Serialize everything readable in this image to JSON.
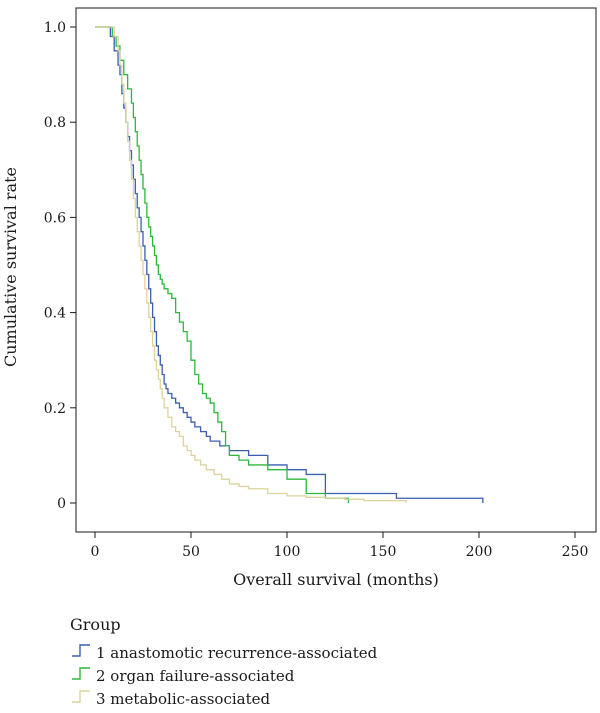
{
  "chart_data": {
    "type": "line",
    "step": true,
    "title": "",
    "xlabel": "Overall survival (months)",
    "ylabel": "Cumulative survival rate",
    "xlim": [
      0,
      250
    ],
    "ylim": [
      0,
      1.0
    ],
    "xticks": [
      0,
      50,
      100,
      150,
      200,
      250
    ],
    "xtick_labels": [
      "0",
      "50",
      "100",
      "150",
      "200",
      "250"
    ],
    "yticks": [
      0,
      0.2,
      0.4,
      0.6,
      0.8,
      1.0
    ],
    "ytick_labels": [
      "0",
      "0.2",
      "0.4",
      "0.6",
      "0.8",
      "1.0"
    ],
    "grid": false,
    "legend": {
      "title": "Group",
      "position": "bottom-left"
    },
    "series": [
      {
        "name": "1 anastomotic recurrence-associated",
        "color": "#3a5fb0",
        "x": [
          6,
          8,
          10,
          12,
          13,
          14,
          15,
          16,
          17,
          18,
          19,
          20,
          21,
          22,
          23,
          24,
          25,
          26,
          27,
          28,
          29,
          30,
          31,
          32,
          33,
          34,
          35,
          36,
          37,
          38,
          40,
          42,
          44,
          46,
          48,
          50,
          52,
          55,
          58,
          60,
          65,
          70,
          80,
          90,
          100,
          110,
          120,
          157,
          202
        ],
        "y": [
          1.0,
          0.98,
          0.95,
          0.92,
          0.9,
          0.86,
          0.83,
          0.8,
          0.77,
          0.74,
          0.71,
          0.68,
          0.65,
          0.62,
          0.6,
          0.57,
          0.54,
          0.51,
          0.48,
          0.45,
          0.42,
          0.39,
          0.36,
          0.33,
          0.31,
          0.29,
          0.27,
          0.25,
          0.24,
          0.23,
          0.22,
          0.21,
          0.2,
          0.19,
          0.18,
          0.17,
          0.16,
          0.15,
          0.14,
          0.13,
          0.12,
          0.11,
          0.1,
          0.08,
          0.07,
          0.06,
          0.02,
          0.01,
          0.0
        ]
      },
      {
        "name": "2 organ failure-associated",
        "color": "#2db83a",
        "x": [
          7,
          9,
          11,
          13,
          15,
          17,
          19,
          20,
          21,
          22,
          23,
          24,
          25,
          26,
          27,
          28,
          29,
          30,
          31,
          32,
          33,
          34,
          35,
          36,
          38,
          40,
          42,
          44,
          46,
          48,
          50,
          52,
          54,
          56,
          58,
          60,
          62,
          64,
          66,
          68,
          70,
          75,
          80,
          90,
          100,
          110,
          120,
          132
        ],
        "y": [
          1.0,
          0.98,
          0.96,
          0.93,
          0.9,
          0.87,
          0.84,
          0.81,
          0.78,
          0.75,
          0.72,
          0.69,
          0.66,
          0.63,
          0.6,
          0.58,
          0.56,
          0.54,
          0.52,
          0.5,
          0.48,
          0.47,
          0.46,
          0.45,
          0.44,
          0.43,
          0.4,
          0.38,
          0.36,
          0.34,
          0.3,
          0.27,
          0.25,
          0.23,
          0.22,
          0.21,
          0.19,
          0.17,
          0.15,
          0.12,
          0.1,
          0.09,
          0.08,
          0.07,
          0.05,
          0.02,
          0.01,
          0.0
        ]
      },
      {
        "name": "3 metabolic-associated",
        "color": "#dcd49c",
        "x": [
          8,
          10,
          12,
          13,
          14,
          15,
          16,
          17,
          18,
          19,
          20,
          21,
          22,
          23,
          24,
          25,
          26,
          27,
          28,
          29,
          30,
          31,
          32,
          33,
          34,
          35,
          36,
          38,
          40,
          42,
          44,
          46,
          48,
          50,
          52,
          55,
          58,
          62,
          66,
          70,
          75,
          80,
          90,
          100,
          110,
          120,
          130,
          140,
          162
        ],
        "y": [
          1.0,
          0.98,
          0.95,
          0.92,
          0.88,
          0.84,
          0.8,
          0.76,
          0.72,
          0.68,
          0.64,
          0.6,
          0.57,
          0.54,
          0.51,
          0.48,
          0.45,
          0.42,
          0.39,
          0.36,
          0.33,
          0.3,
          0.28,
          0.26,
          0.24,
          0.22,
          0.2,
          0.18,
          0.16,
          0.15,
          0.14,
          0.12,
          0.11,
          0.1,
          0.09,
          0.08,
          0.07,
          0.06,
          0.05,
          0.04,
          0.035,
          0.03,
          0.02,
          0.015,
          0.012,
          0.01,
          0.008,
          0.005,
          0.0
        ]
      }
    ]
  }
}
